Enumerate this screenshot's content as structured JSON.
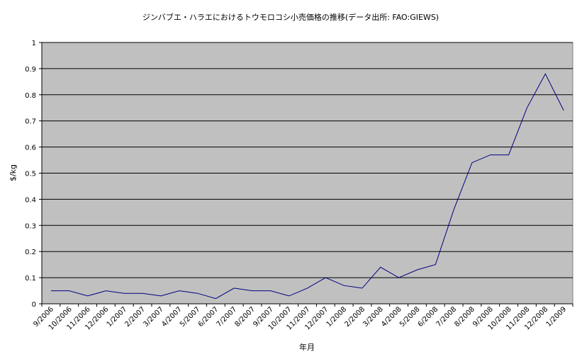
{
  "chart_data": {
    "type": "line",
    "title": "ジンバブエ・ハラエにおけるトウモロコシ小売価格の推移(データ出所: FAO:GIEWS)",
    "xlabel": "年月",
    "ylabel": "$/kg",
    "ylim": [
      0,
      1
    ],
    "yticks": [
      "0",
      "0.1",
      "0.2",
      "0.3",
      "0.4",
      "0.5",
      "0.6",
      "0.7",
      "0.8",
      "0.9",
      "1"
    ],
    "grid": true,
    "plot_background": "#c0c0c0",
    "line_color": "#000080",
    "categories": [
      "9/2006",
      "10/2006",
      "11/2006",
      "12/2006",
      "1/2007",
      "2/2007",
      "3/2007",
      "4/2007",
      "5/2007",
      "6/2007",
      "7/2007",
      "8/2007",
      "9/2007",
      "10/2007",
      "11/2007",
      "12/2007",
      "1/2008",
      "2/2008",
      "3/2008",
      "4/2008",
      "5/2008",
      "6/2008",
      "7/2008",
      "8/2008",
      "9/2008",
      "10/2008",
      "11/2008",
      "12/2008",
      "1/2009"
    ],
    "series": [
      {
        "values": [
          0.05,
          0.05,
          0.03,
          0.05,
          0.04,
          0.04,
          0.03,
          0.05,
          0.04,
          0.02,
          0.06,
          0.05,
          0.05,
          0.03,
          0.06,
          0.1,
          0.07,
          0.06,
          0.14,
          0.1,
          0.13,
          0.15,
          0.36,
          0.54,
          0.57,
          0.57,
          0.75,
          0.88,
          0.74
        ]
      }
    ]
  }
}
